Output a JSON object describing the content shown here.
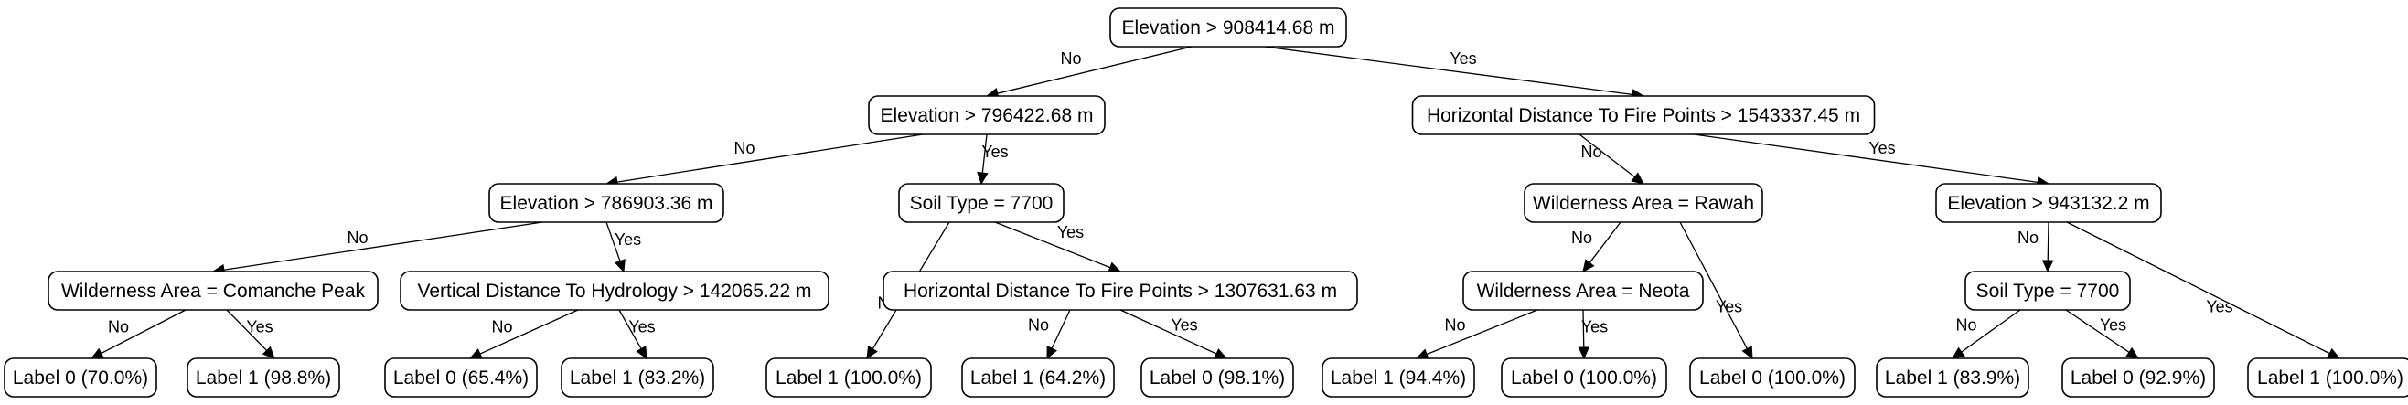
{
  "nodes": {
    "n_root": "Elevation > 908414.68 m",
    "n_a": "Elevation > 796422.68 m",
    "n_b": "Horizontal Distance To Fire Points > 1543337.45 m",
    "n_aa": "Elevation > 786903.36 m",
    "n_ab": "Soil Type = 7700",
    "n_ba": "Wilderness Area = Rawah",
    "n_bb": "Elevation > 943132.2 m",
    "n_aaa": "Wilderness Area = Comanche Peak",
    "n_aab": "Vertical Distance To Hydrology > 142065.22 m",
    "n_abb": "Horizontal Distance To Fire Points > 1307631.63 m",
    "n_baa": "Wilderness Area = Neota",
    "n_bba": "Soil Type = 7700",
    "l1": "Label 0 (70.0%)",
    "l2": "Label 1 (98.8%)",
    "l3": "Label 0 (65.4%)",
    "l4": "Label 1 (83.2%)",
    "l5": "Label 1 (100.0%)",
    "l6": "Label 1 (64.2%)",
    "l7": "Label 0 (98.1%)",
    "l8": "Label 1 (94.4%)",
    "l9": "Label 0 (100.0%)",
    "l10": "Label 0 (100.0%)",
    "l11": "Label 1 (83.9%)",
    "l12": "Label 0 (92.9%)",
    "l13": "Label 1 (100.0%)"
  },
  "edges": [
    {
      "from": "n_root",
      "to": "n_a",
      "label": "No"
    },
    {
      "from": "n_root",
      "to": "n_b",
      "label": "Yes"
    },
    {
      "from": "n_a",
      "to": "n_aa",
      "label": "No"
    },
    {
      "from": "n_a",
      "to": "n_ab",
      "label": "Yes"
    },
    {
      "from": "n_aa",
      "to": "n_aaa",
      "label": "No"
    },
    {
      "from": "n_aa",
      "to": "n_aab",
      "label": "Yes"
    },
    {
      "from": "n_aaa",
      "to": "l1",
      "label": "No"
    },
    {
      "from": "n_aaa",
      "to": "l2",
      "label": "Yes"
    },
    {
      "from": "n_aab",
      "to": "l3",
      "label": "No"
    },
    {
      "from": "n_aab",
      "to": "l4",
      "label": "Yes"
    },
    {
      "from": "n_ab",
      "to": "l5",
      "label": "No"
    },
    {
      "from": "n_ab",
      "to": "n_abb",
      "label": "Yes"
    },
    {
      "from": "n_abb",
      "to": "l6",
      "label": "No"
    },
    {
      "from": "n_abb",
      "to": "l7",
      "label": "Yes"
    },
    {
      "from": "n_b",
      "to": "n_ba",
      "label": "No"
    },
    {
      "from": "n_b",
      "to": "n_bb",
      "label": "Yes"
    },
    {
      "from": "n_ba",
      "to": "n_baa",
      "label": "No"
    },
    {
      "from": "n_ba",
      "to": "l10",
      "label": "Yes"
    },
    {
      "from": "n_baa",
      "to": "l8",
      "label": "No"
    },
    {
      "from": "n_baa",
      "to": "l9",
      "label": "Yes"
    },
    {
      "from": "n_bb",
      "to": "n_bba",
      "label": "No"
    },
    {
      "from": "n_bb",
      "to": "l13",
      "label": "Yes"
    },
    {
      "from": "n_bba",
      "to": "l11",
      "label": "No"
    },
    {
      "from": "n_bba",
      "to": "l12",
      "label": "Yes"
    }
  ]
}
